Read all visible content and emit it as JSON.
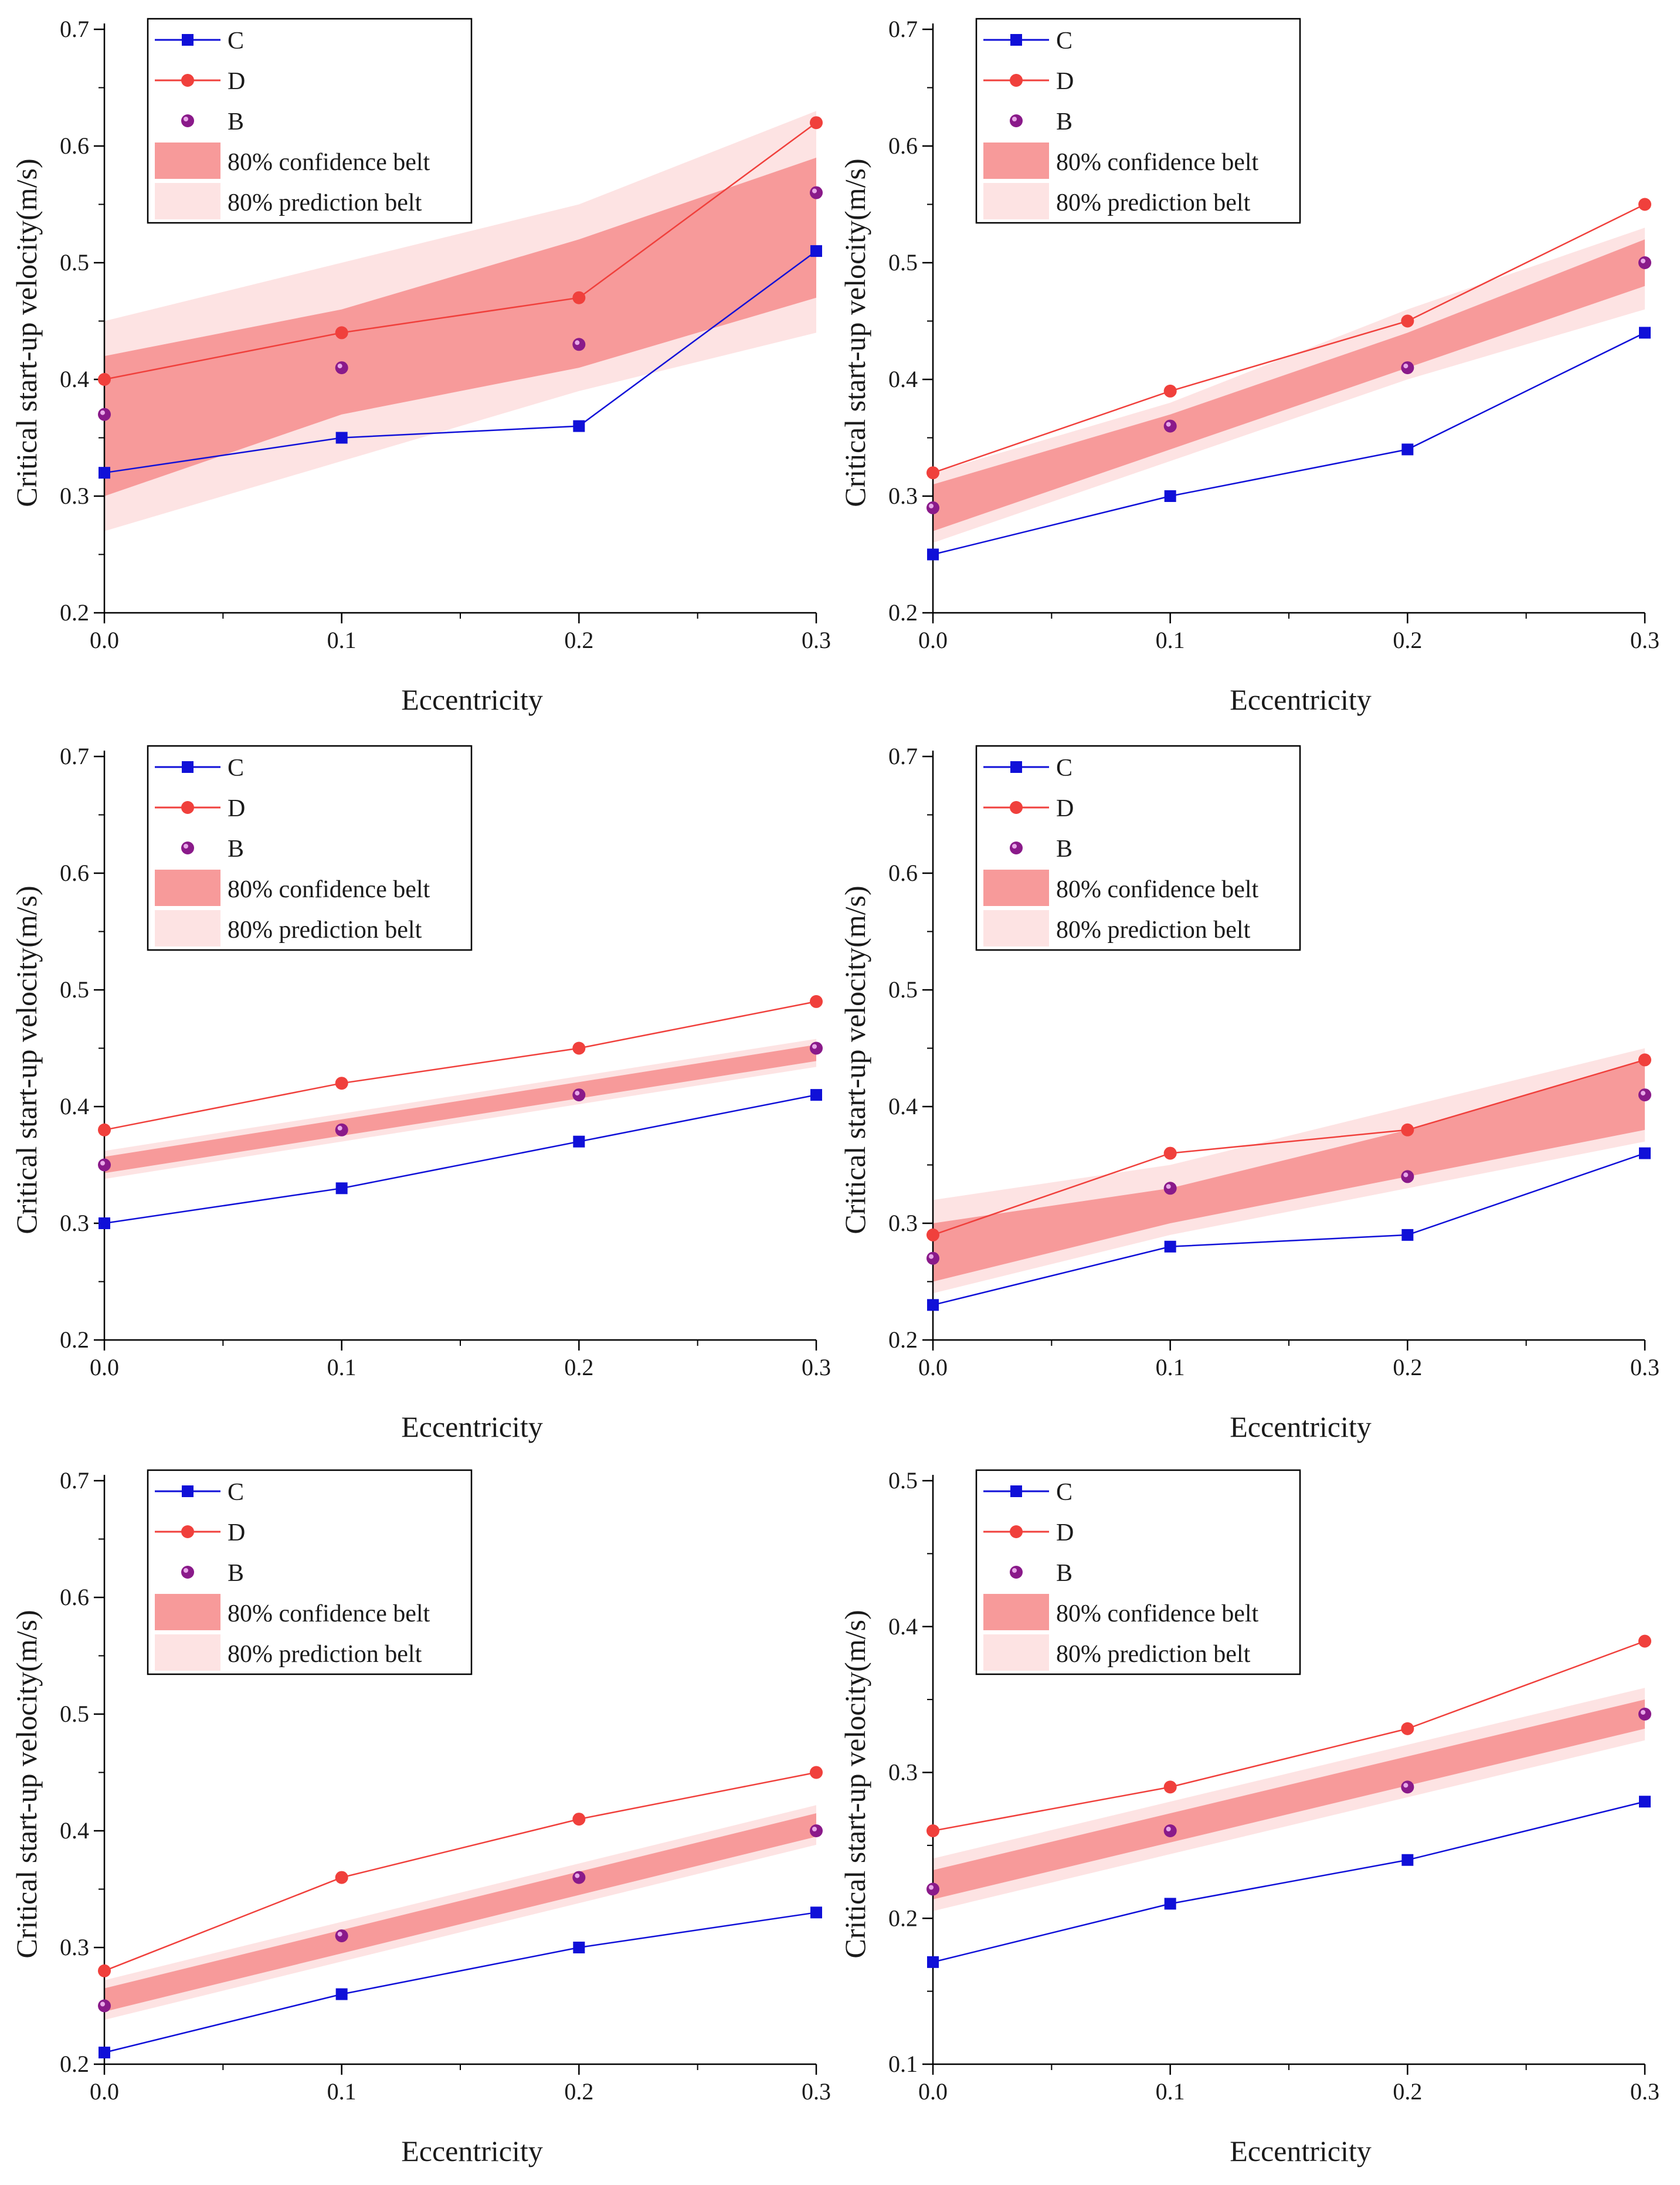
{
  "legend": {
    "c": "C",
    "d": "D",
    "b": "B",
    "confidence": "80% confidence belt",
    "prediction": "80% prediction belt"
  },
  "colors": {
    "c_line": "#1010d8",
    "d_line": "#f0403c",
    "b_marker": "#8a1a8a",
    "confidence_fill": "#f79a9a",
    "prediction_fill": "#fde3e3",
    "axis": "#000000"
  },
  "chart_data": [
    {
      "type": "line",
      "title": "",
      "xlabel": "Eccentricity",
      "ylabel": "Critical start-up velocity(m/s)",
      "xlim": [
        0,
        0.3
      ],
      "ylim": [
        0.2,
        0.7
      ],
      "x": [
        0,
        0.1,
        0.2,
        0.3
      ],
      "x_ticks": [
        "0.0",
        "0.1",
        "0.2",
        "0.3"
      ],
      "y_ticks": [
        "0.2",
        "0.3",
        "0.4",
        "0.5",
        "0.6",
        "0.7"
      ],
      "series": [
        {
          "name": "C",
          "values": [
            0.32,
            0.35,
            0.36,
            0.51
          ]
        },
        {
          "name": "D",
          "values": [
            0.4,
            0.44,
            0.47,
            0.62
          ]
        },
        {
          "name": "B",
          "values": [
            0.37,
            0.41,
            0.43,
            0.56
          ]
        }
      ],
      "confidence_belt": {
        "x": [
          0,
          0.1,
          0.2,
          0.3
        ],
        "lower": [
          0.3,
          0.37,
          0.41,
          0.47
        ],
        "upper": [
          0.42,
          0.46,
          0.52,
          0.59
        ]
      },
      "prediction_belt": {
        "x": [
          0,
          0.1,
          0.2,
          0.3
        ],
        "lower": [
          0.27,
          0.33,
          0.39,
          0.44
        ],
        "upper": [
          0.45,
          0.5,
          0.55,
          0.63
        ]
      },
      "legend_position": "top-left"
    },
    {
      "type": "line",
      "title": "",
      "xlabel": "Eccentricity",
      "ylabel": "Critical start-up velocity(m/s)",
      "xlim": [
        0,
        0.3
      ],
      "ylim": [
        0.2,
        0.7
      ],
      "x": [
        0,
        0.1,
        0.2,
        0.3
      ],
      "x_ticks": [
        "0.0",
        "0.1",
        "0.2",
        "0.3"
      ],
      "y_ticks": [
        "0.2",
        "0.3",
        "0.4",
        "0.5",
        "0.6",
        "0.7"
      ],
      "series": [
        {
          "name": "C",
          "values": [
            0.25,
            0.3,
            0.34,
            0.44
          ]
        },
        {
          "name": "D",
          "values": [
            0.32,
            0.39,
            0.45,
            0.55
          ]
        },
        {
          "name": "B",
          "values": [
            0.29,
            0.36,
            0.41,
            0.5
          ]
        }
      ],
      "confidence_belt": {
        "x": [
          0,
          0.1,
          0.2,
          0.3
        ],
        "lower": [
          0.27,
          0.34,
          0.41,
          0.48
        ],
        "upper": [
          0.31,
          0.37,
          0.44,
          0.52
        ]
      },
      "prediction_belt": {
        "x": [
          0,
          0.1,
          0.2,
          0.3
        ],
        "lower": [
          0.26,
          0.33,
          0.4,
          0.46
        ],
        "upper": [
          0.32,
          0.38,
          0.46,
          0.53
        ]
      },
      "legend_position": "top-left"
    },
    {
      "type": "line",
      "title": "",
      "xlabel": "Eccentricity",
      "ylabel": "Critical start-up velocity(m/s)",
      "xlim": [
        0,
        0.3
      ],
      "ylim": [
        0.2,
        0.7
      ],
      "x": [
        0,
        0.1,
        0.2,
        0.3
      ],
      "x_ticks": [
        "0.0",
        "0.1",
        "0.2",
        "0.3"
      ],
      "y_ticks": [
        "0.2",
        "0.3",
        "0.4",
        "0.5",
        "0.6",
        "0.7"
      ],
      "series": [
        {
          "name": "C",
          "values": [
            0.3,
            0.33,
            0.37,
            0.41
          ]
        },
        {
          "name": "D",
          "values": [
            0.38,
            0.42,
            0.45,
            0.49
          ]
        },
        {
          "name": "B",
          "values": [
            0.35,
            0.38,
            0.41,
            0.45
          ]
        }
      ],
      "confidence_belt": {
        "x": [
          0,
          0.1,
          0.2,
          0.3
        ],
        "lower": [
          0.343,
          0.375,
          0.407,
          0.439
        ],
        "upper": [
          0.357,
          0.389,
          0.421,
          0.453
        ]
      },
      "prediction_belt": {
        "x": [
          0,
          0.1,
          0.2,
          0.3
        ],
        "lower": [
          0.338,
          0.37,
          0.402,
          0.434
        ],
        "upper": [
          0.362,
          0.394,
          0.426,
          0.458
        ]
      },
      "legend_position": "top-left"
    },
    {
      "type": "line",
      "title": "",
      "xlabel": "Eccentricity",
      "ylabel": "Critical start-up velocity(m/s)",
      "xlim": [
        0,
        0.3
      ],
      "ylim": [
        0.2,
        0.7
      ],
      "x": [
        0,
        0.1,
        0.2,
        0.3
      ],
      "x_ticks": [
        "0.0",
        "0.1",
        "0.2",
        "0.3"
      ],
      "y_ticks": [
        "0.2",
        "0.3",
        "0.4",
        "0.5",
        "0.6",
        "0.7"
      ],
      "series": [
        {
          "name": "C",
          "values": [
            0.23,
            0.28,
            0.29,
            0.36
          ]
        },
        {
          "name": "D",
          "values": [
            0.29,
            0.36,
            0.38,
            0.44
          ]
        },
        {
          "name": "B",
          "values": [
            0.27,
            0.33,
            0.34,
            0.41
          ]
        }
      ],
      "confidence_belt": {
        "x": [
          0,
          0.1,
          0.2,
          0.3
        ],
        "lower": [
          0.25,
          0.3,
          0.34,
          0.38
        ],
        "upper": [
          0.3,
          0.33,
          0.38,
          0.44
        ]
      },
      "prediction_belt": {
        "x": [
          0,
          0.1,
          0.2,
          0.3
        ],
        "lower": [
          0.24,
          0.29,
          0.33,
          0.37
        ],
        "upper": [
          0.32,
          0.35,
          0.4,
          0.45
        ]
      },
      "legend_position": "top-left"
    },
    {
      "type": "line",
      "title": "",
      "xlabel": "Eccentricity",
      "ylabel": "Critical start-up velocity(m/s)",
      "xlim": [
        0,
        0.3
      ],
      "ylim": [
        0.2,
        0.7
      ],
      "x": [
        0,
        0.1,
        0.2,
        0.3
      ],
      "x_ticks": [
        "0.0",
        "0.1",
        "0.2",
        "0.3"
      ],
      "y_ticks": [
        "0.2",
        "0.3",
        "0.4",
        "0.5",
        "0.6",
        "0.7"
      ],
      "series": [
        {
          "name": "C",
          "values": [
            0.21,
            0.26,
            0.3,
            0.33
          ]
        },
        {
          "name": "D",
          "values": [
            0.28,
            0.36,
            0.41,
            0.45
          ]
        },
        {
          "name": "B",
          "values": [
            0.25,
            0.31,
            0.36,
            0.4
          ]
        }
      ],
      "confidence_belt": {
        "x": [
          0,
          0.1,
          0.2,
          0.3
        ],
        "lower": [
          0.245,
          0.295,
          0.345,
          0.395
        ],
        "upper": [
          0.265,
          0.315,
          0.365,
          0.415
        ]
      },
      "prediction_belt": {
        "x": [
          0,
          0.1,
          0.2,
          0.3
        ],
        "lower": [
          0.238,
          0.288,
          0.338,
          0.388
        ],
        "upper": [
          0.272,
          0.322,
          0.372,
          0.422
        ]
      },
      "legend_position": "top-left"
    },
    {
      "type": "line",
      "title": "",
      "xlabel": "Eccentricity",
      "ylabel": "Critical start-up velocity(m/s)",
      "xlim": [
        0,
        0.3
      ],
      "ylim": [
        0.1,
        0.5
      ],
      "x": [
        0,
        0.1,
        0.2,
        0.3
      ],
      "x_ticks": [
        "0.0",
        "0.1",
        "0.2",
        "0.3"
      ],
      "y_ticks": [
        "0.1",
        "0.2",
        "0.3",
        "0.4",
        "0.5"
      ],
      "series": [
        {
          "name": "C",
          "values": [
            0.17,
            0.21,
            0.24,
            0.28
          ]
        },
        {
          "name": "D",
          "values": [
            0.26,
            0.29,
            0.33,
            0.39
          ]
        },
        {
          "name": "B",
          "values": [
            0.22,
            0.26,
            0.29,
            0.34
          ]
        }
      ],
      "confidence_belt": {
        "x": [
          0,
          0.1,
          0.2,
          0.3
        ],
        "lower": [
          0.213,
          0.252,
          0.291,
          0.33
        ],
        "upper": [
          0.233,
          0.272,
          0.311,
          0.35
        ]
      },
      "prediction_belt": {
        "x": [
          0,
          0.1,
          0.2,
          0.3
        ],
        "lower": [
          0.205,
          0.244,
          0.283,
          0.322
        ],
        "upper": [
          0.241,
          0.28,
          0.319,
          0.358
        ]
      },
      "legend_position": "top-left"
    }
  ]
}
